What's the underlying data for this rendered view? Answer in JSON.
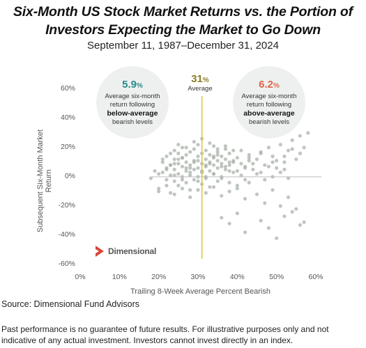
{
  "header": {
    "title_line1": "Six-Month US Stock Market Returns vs. the Portion of",
    "title_line2": "Investors Expecting the Market to Go Down",
    "subtitle": "September 11, 1987–December 31, 2024"
  },
  "annotations": {
    "left_value": "5.9",
    "left_pct": "%",
    "left_line1": "Average six-month",
    "left_line2": "return following",
    "left_bold": "below-average",
    "left_line4": "bearish levels",
    "left_color": "#2a8a8c",
    "avg_value": "31",
    "avg_pct": "%",
    "avg_label": "Average",
    "avg_color": "#8a7d2a",
    "right_value": "6.2",
    "right_pct": "%",
    "right_line1": "Average six-month",
    "right_line2": "return following",
    "right_bold": "above-average",
    "right_line4": "bearish levels",
    "right_color": "#e0654a"
  },
  "logo": {
    "text": "Dimensional",
    "mark_color": "#d9453a"
  },
  "source": "Source: Dimensional Fund Advisors",
  "disclaimer": "Past performance is no guarantee of future results. For illustrative purposes only and not indicative of any actual investment. Investors cannot invest directly in an index.",
  "chart_data": {
    "type": "scatter",
    "title": "Six-Month US Stock Market Returns vs. the Portion of Investors Expecting the Market to Go Down",
    "subtitle": "September 11, 1987–December 31, 2024",
    "xlabel": "Trailing 8-Week Average Percent Bearish",
    "ylabel": "Subsequent Six-Month Market Return",
    "xlim": [
      0,
      60
    ],
    "ylim": [
      -60,
      60
    ],
    "x_ticks": [
      "0%",
      "10%",
      "20%",
      "30%",
      "40%",
      "50%",
      "60%"
    ],
    "y_ticks": [
      "60%",
      "40%",
      "20%",
      "0%",
      "-20%",
      "-40%",
      "-60%"
    ],
    "average_line_x": 31,
    "point_color": "#a9b3aa",
    "avg_line_color": "#d8c74a",
    "zero_line_color": "#bbbbbb",
    "series": [
      {
        "x": [
          18,
          19,
          20,
          20,
          21,
          21,
          22,
          22,
          22,
          23,
          23,
          23,
          24,
          24,
          24,
          24,
          25,
          25,
          25,
          25,
          26,
          26,
          26,
          26,
          27,
          27,
          27,
          27,
          28,
          28,
          28,
          28,
          29,
          29,
          29,
          29,
          30,
          30,
          30,
          30,
          31,
          31,
          31,
          31,
          32,
          32,
          32,
          32,
          33,
          33,
          33,
          33,
          34,
          34,
          34,
          34,
          35,
          35,
          35,
          35,
          36,
          36,
          36,
          37,
          37,
          37,
          38,
          38,
          38,
          39,
          39,
          40,
          40,
          41,
          41,
          42,
          42,
          43,
          43,
          44,
          45,
          46,
          47,
          48,
          49,
          50,
          51,
          52,
          53,
          54,
          55,
          56,
          57,
          58,
          21,
          23,
          25,
          27,
          29,
          31,
          33,
          35,
          37,
          39,
          22,
          24,
          26,
          28,
          30,
          32,
          34,
          36,
          38,
          40,
          42,
          44,
          46,
          48,
          50,
          52,
          20,
          22,
          24,
          26,
          28,
          30,
          32,
          34,
          36,
          38,
          40,
          42,
          45,
          47,
          49,
          51,
          53,
          55,
          24,
          26,
          28,
          30,
          32,
          34,
          36,
          38,
          41,
          43,
          45,
          47,
          49,
          51,
          53,
          23,
          25,
          27,
          29,
          31,
          33,
          35,
          37,
          39,
          43,
          46,
          49,
          52,
          54,
          56,
          36,
          38,
          40,
          42,
          46,
          48,
          50,
          52,
          54,
          56,
          57
        ],
        "y": [
          -1,
          4,
          2,
          -8,
          3,
          10,
          -2,
          6,
          14,
          1,
          8,
          -11,
          5,
          12,
          -3,
          18,
          9,
          2,
          16,
          -6,
          7,
          13,
          0,
          20,
          10,
          4,
          -4,
          15,
          8,
          17,
          1,
          -9,
          11,
          5,
          19,
          -2,
          6,
          14,
          0,
          22,
          9,
          3,
          16,
          -5,
          12,
          7,
          -1,
          18,
          10,
          4,
          15,
          -7,
          8,
          13,
          2,
          21,
          11,
          6,
          -3,
          17,
          9,
          14,
          0,
          12,
          5,
          19,
          8,
          -4,
          16,
          10,
          3,
          13,
          -6,
          9,
          18,
          7,
          -2,
          15,
          11,
          5,
          12,
          16,
          8,
          20,
          14,
          6,
          22,
          10,
          18,
          25,
          12,
          28,
          20,
          30,
          12,
          16,
          22,
          20,
          24,
          26,
          23,
          19,
          21,
          18,
          5,
          9,
          13,
          6,
          11,
          8,
          14,
          7,
          10,
          4,
          6,
          9,
          3,
          7,
          11,
          5,
          -10,
          -6,
          -12,
          -8,
          -14,
          -9,
          -11,
          -7,
          -13,
          -10,
          -8,
          -15,
          -12,
          -18,
          -9,
          -20,
          -14,
          -22,
          1,
          -2,
          3,
          -3,
          0,
          2,
          -1,
          4,
          1,
          -4,
          2,
          -2,
          0,
          3,
          -1,
          8,
          12,
          6,
          10,
          4,
          9,
          15,
          7,
          11,
          13,
          17,
          10,
          14,
          19,
          16,
          -28,
          -32,
          -25,
          -38,
          -30,
          -35,
          -42,
          -27,
          -24,
          -33,
          -31
        ]
      }
    ]
  }
}
